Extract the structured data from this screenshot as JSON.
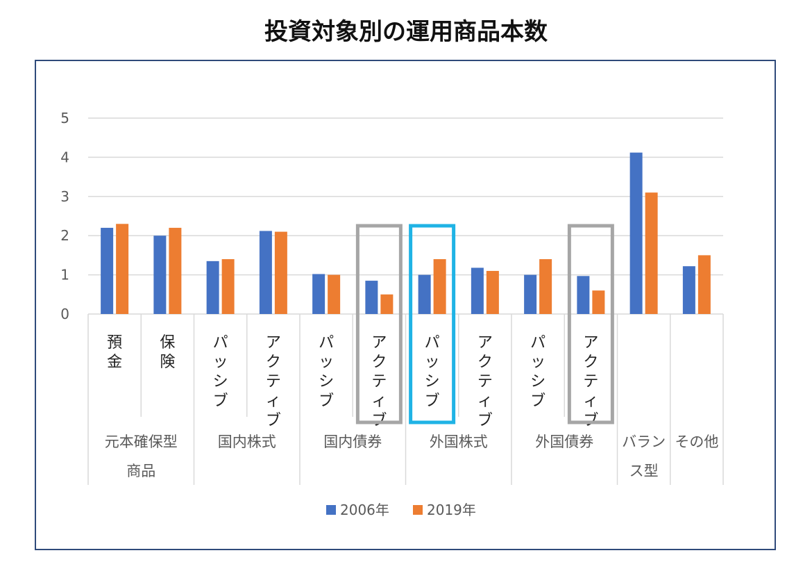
{
  "title": "投資対象別の運用商品本数",
  "chart_data": {
    "type": "bar",
    "title": "投資対象別の運用商品本数",
    "xlabel": "",
    "ylabel": "",
    "ylim": [
      0,
      5
    ],
    "yticks": [
      "0",
      "1",
      "2",
      "3",
      "4",
      "5"
    ],
    "grid": true,
    "legend_position": "bottom",
    "categories": [
      {
        "lines": [
          "預",
          "金"
        ],
        "group": 0
      },
      {
        "lines": [
          "保",
          "険"
        ],
        "group": 0
      },
      {
        "lines": [
          "パ",
          "ッ",
          "シ",
          "ブ"
        ],
        "group": 1
      },
      {
        "lines": [
          "ア",
          "ク",
          "テ",
          "ィ",
          "ブ"
        ],
        "group": 1
      },
      {
        "lines": [
          "パ",
          "ッ",
          "シ",
          "ブ"
        ],
        "group": 2
      },
      {
        "lines": [
          "ア",
          "ク",
          "テ",
          "ィ",
          "ブ"
        ],
        "group": 2
      },
      {
        "lines": [
          "パ",
          "ッ",
          "シ",
          "ブ"
        ],
        "group": 3
      },
      {
        "lines": [
          "ア",
          "ク",
          "テ",
          "ィ",
          "ブ"
        ],
        "group": 3
      },
      {
        "lines": [
          "パ",
          "ッ",
          "シ",
          "ブ"
        ],
        "group": 4
      },
      {
        "lines": [
          "ア",
          "ク",
          "テ",
          "ィ",
          "ブ"
        ],
        "group": 4
      },
      {
        "lines": [],
        "group": 5
      },
      {
        "lines": [],
        "group": 6
      }
    ],
    "groups": [
      {
        "lines": [
          "元本確保型",
          "商品"
        ],
        "start": 0,
        "span": 2
      },
      {
        "lines": [
          "国内株式"
        ],
        "start": 2,
        "span": 2
      },
      {
        "lines": [
          "国内債券"
        ],
        "start": 4,
        "span": 2
      },
      {
        "lines": [
          "外国株式"
        ],
        "start": 6,
        "span": 2
      },
      {
        "lines": [
          "外国債券"
        ],
        "start": 8,
        "span": 2
      },
      {
        "lines": [
          "バラン",
          "ス型"
        ],
        "start": 10,
        "span": 1
      },
      {
        "lines": [
          "その他"
        ],
        "start": 11,
        "span": 1
      }
    ],
    "series": [
      {
        "name": "2006年",
        "color": "#4472c4",
        "values": [
          2.2,
          2.0,
          1.35,
          2.12,
          1.02,
          0.85,
          1.0,
          1.18,
          1.0,
          0.97,
          4.12,
          1.22
        ]
      },
      {
        "name": "2019年",
        "color": "#ed7d31",
        "values": [
          2.3,
          2.2,
          1.4,
          2.1,
          1.0,
          0.5,
          1.4,
          1.1,
          1.4,
          0.6,
          3.1,
          1.5
        ]
      }
    ],
    "highlights": [
      {
        "category": 5,
        "color": "#a6a6a6"
      },
      {
        "category": 6,
        "color": "#1fb3e5"
      },
      {
        "category": 9,
        "color": "#a6a6a6"
      }
    ]
  }
}
